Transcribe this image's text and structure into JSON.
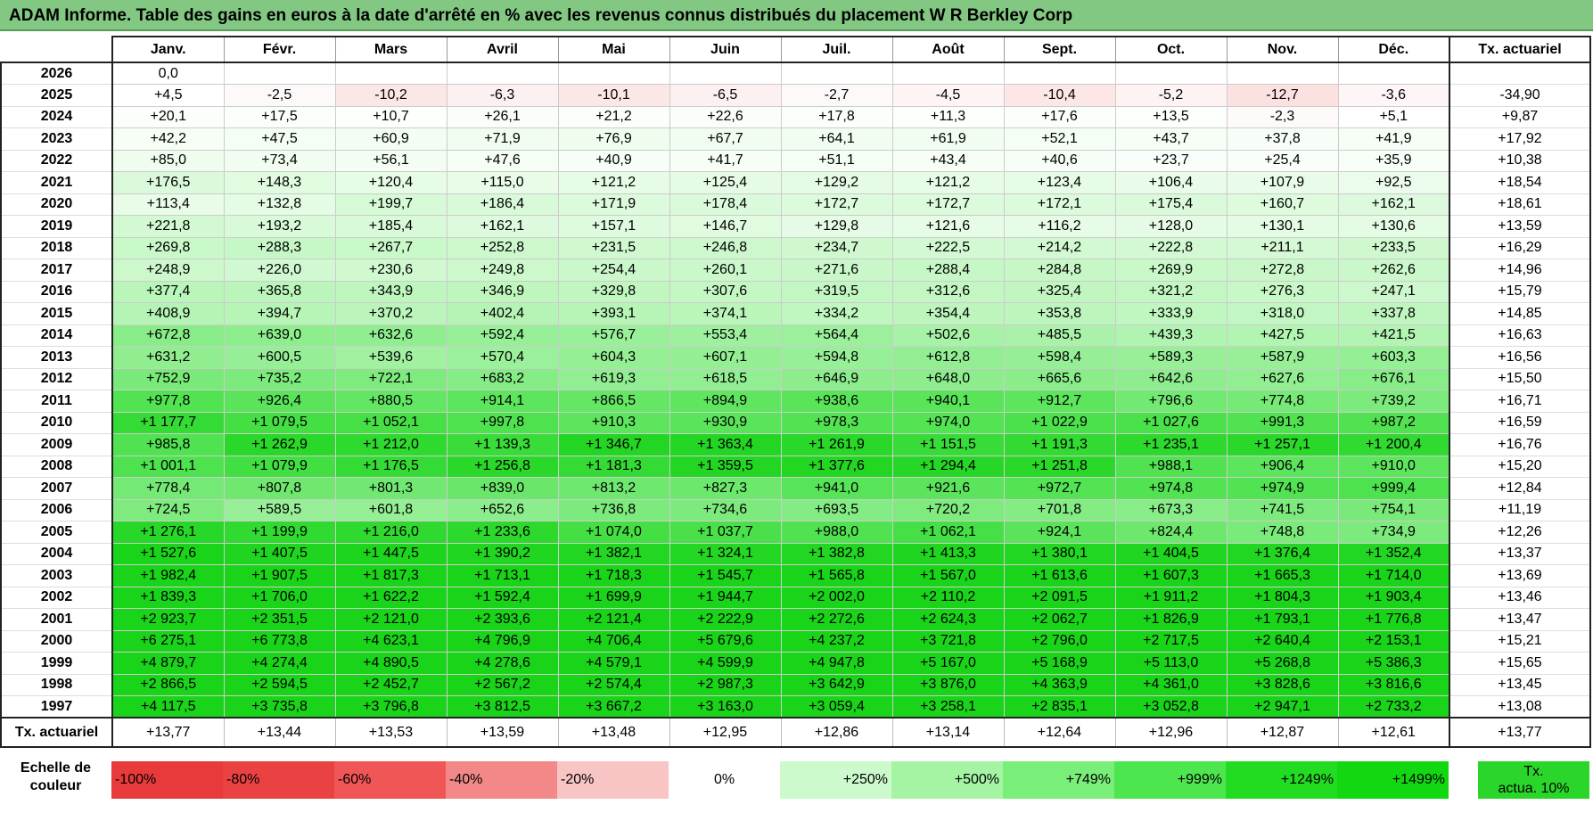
{
  "title": "ADAM Informe. Table des gains en euros à la date d'arrêté en % avec les revenus connus distribués du placement W R Berkley Corp",
  "months": [
    "Janv.",
    "Févr.",
    "Mars",
    "Avril",
    "Mai",
    "Juin",
    "Juil.",
    "Août",
    "Sept.",
    "Oct.",
    "Nov.",
    "Déc."
  ],
  "rate_header": "Tx. actuariel",
  "rows": [
    {
      "year": "2026",
      "vals": [
        "0,0",
        "",
        "",
        "",
        "",
        "",
        "",
        "",
        "",
        "",
        "",
        ""
      ],
      "rate": ""
    },
    {
      "year": "2025",
      "vals": [
        "+4,5",
        "-2,5",
        "-10,2",
        "-6,3",
        "-10,1",
        "-6,5",
        "-2,7",
        "-4,5",
        "-10,4",
        "-5,2",
        "-12,7",
        "-3,6"
      ],
      "rate": "-34,90"
    },
    {
      "year": "2024",
      "vals": [
        "+20,1",
        "+17,5",
        "+10,7",
        "+26,1",
        "+21,2",
        "+22,6",
        "+17,8",
        "+11,3",
        "+17,6",
        "+13,5",
        "-2,3",
        "+5,1"
      ],
      "rate": "+9,87"
    },
    {
      "year": "2023",
      "vals": [
        "+42,2",
        "+47,5",
        "+60,9",
        "+71,9",
        "+76,9",
        "+67,7",
        "+64,1",
        "+61,9",
        "+52,1",
        "+43,7",
        "+37,8",
        "+41,9"
      ],
      "rate": "+17,92"
    },
    {
      "year": "2022",
      "vals": [
        "+85,0",
        "+73,4",
        "+56,1",
        "+47,6",
        "+40,9",
        "+41,7",
        "+51,1",
        "+43,4",
        "+40,6",
        "+23,7",
        "+25,4",
        "+35,9"
      ],
      "rate": "+10,38"
    },
    {
      "year": "2021",
      "vals": [
        "+176,5",
        "+148,3",
        "+120,4",
        "+115,0",
        "+121,2",
        "+125,4",
        "+129,2",
        "+121,2",
        "+123,4",
        "+106,4",
        "+107,9",
        "+92,5"
      ],
      "rate": "+18,54"
    },
    {
      "year": "2020",
      "vals": [
        "+113,4",
        "+132,8",
        "+199,7",
        "+186,4",
        "+171,9",
        "+178,4",
        "+172,7",
        "+172,7",
        "+172,1",
        "+175,4",
        "+160,7",
        "+162,1"
      ],
      "rate": "+18,61"
    },
    {
      "year": "2019",
      "vals": [
        "+221,8",
        "+193,2",
        "+185,4",
        "+162,1",
        "+157,1",
        "+146,7",
        "+129,8",
        "+121,6",
        "+116,2",
        "+128,0",
        "+130,1",
        "+130,6"
      ],
      "rate": "+13,59"
    },
    {
      "year": "2018",
      "vals": [
        "+269,8",
        "+288,3",
        "+267,7",
        "+252,8",
        "+231,5",
        "+246,8",
        "+234,7",
        "+222,5",
        "+214,2",
        "+222,8",
        "+211,1",
        "+233,5"
      ],
      "rate": "+16,29"
    },
    {
      "year": "2017",
      "vals": [
        "+248,9",
        "+226,0",
        "+230,6",
        "+249,8",
        "+254,4",
        "+260,1",
        "+271,6",
        "+288,4",
        "+284,8",
        "+269,9",
        "+272,8",
        "+262,6"
      ],
      "rate": "+14,96"
    },
    {
      "year": "2016",
      "vals": [
        "+377,4",
        "+365,8",
        "+343,9",
        "+346,9",
        "+329,8",
        "+307,6",
        "+319,5",
        "+312,6",
        "+325,4",
        "+321,2",
        "+276,3",
        "+247,1"
      ],
      "rate": "+15,79"
    },
    {
      "year": "2015",
      "vals": [
        "+408,9",
        "+394,7",
        "+370,2",
        "+402,4",
        "+393,1",
        "+374,1",
        "+334,2",
        "+354,4",
        "+353,8",
        "+333,9",
        "+318,0",
        "+337,8"
      ],
      "rate": "+14,85"
    },
    {
      "year": "2014",
      "vals": [
        "+672,8",
        "+639,0",
        "+632,6",
        "+592,4",
        "+576,7",
        "+553,4",
        "+564,4",
        "+502,6",
        "+485,5",
        "+439,3",
        "+427,5",
        "+421,5"
      ],
      "rate": "+16,63"
    },
    {
      "year": "2013",
      "vals": [
        "+631,2",
        "+600,5",
        "+539,6",
        "+570,4",
        "+604,3",
        "+607,1",
        "+594,8",
        "+612,8",
        "+598,4",
        "+589,3",
        "+587,9",
        "+603,3"
      ],
      "rate": "+16,56"
    },
    {
      "year": "2012",
      "vals": [
        "+752,9",
        "+735,2",
        "+722,1",
        "+683,2",
        "+619,3",
        "+618,5",
        "+646,9",
        "+648,0",
        "+665,6",
        "+642,6",
        "+627,6",
        "+676,1"
      ],
      "rate": "+15,50"
    },
    {
      "year": "2011",
      "vals": [
        "+977,8",
        "+926,4",
        "+880,5",
        "+914,1",
        "+866,5",
        "+894,9",
        "+938,6",
        "+940,1",
        "+912,7",
        "+796,6",
        "+774,8",
        "+739,2"
      ],
      "rate": "+16,71"
    },
    {
      "year": "2010",
      "vals": [
        "+1 177,7",
        "+1 079,5",
        "+1 052,1",
        "+997,8",
        "+910,3",
        "+930,9",
        "+978,3",
        "+974,0",
        "+1 022,9",
        "+1 027,6",
        "+991,3",
        "+987,2"
      ],
      "rate": "+16,59"
    },
    {
      "year": "2009",
      "vals": [
        "+985,8",
        "+1 262,9",
        "+1 212,0",
        "+1 139,3",
        "+1 346,7",
        "+1 363,4",
        "+1 261,9",
        "+1 151,5",
        "+1 191,3",
        "+1 235,1",
        "+1 257,1",
        "+1 200,4"
      ],
      "rate": "+16,76"
    },
    {
      "year": "2008",
      "vals": [
        "+1 001,1",
        "+1 079,9",
        "+1 176,5",
        "+1 256,8",
        "+1 181,3",
        "+1 359,5",
        "+1 377,6",
        "+1 294,4",
        "+1 251,8",
        "+988,1",
        "+906,4",
        "+910,0"
      ],
      "rate": "+15,20"
    },
    {
      "year": "2007",
      "vals": [
        "+778,4",
        "+807,8",
        "+801,3",
        "+839,0",
        "+813,2",
        "+827,3",
        "+941,0",
        "+921,6",
        "+972,7",
        "+974,8",
        "+974,9",
        "+999,4"
      ],
      "rate": "+12,84"
    },
    {
      "year": "2006",
      "vals": [
        "+724,5",
        "+589,5",
        "+601,8",
        "+652,6",
        "+736,8",
        "+734,6",
        "+693,5",
        "+720,2",
        "+701,8",
        "+673,3",
        "+741,5",
        "+754,1"
      ],
      "rate": "+11,19"
    },
    {
      "year": "2005",
      "vals": [
        "+1 276,1",
        "+1 199,9",
        "+1 216,0",
        "+1 233,6",
        "+1 074,0",
        "+1 037,7",
        "+988,0",
        "+1 062,1",
        "+924,1",
        "+824,4",
        "+748,8",
        "+734,9"
      ],
      "rate": "+12,26"
    },
    {
      "year": "2004",
      "vals": [
        "+1 527,6",
        "+1 407,5",
        "+1 447,5",
        "+1 390,2",
        "+1 382,1",
        "+1 324,1",
        "+1 382,8",
        "+1 413,3",
        "+1 380,1",
        "+1 404,5",
        "+1 376,4",
        "+1 352,4"
      ],
      "rate": "+13,37"
    },
    {
      "year": "2003",
      "vals": [
        "+1 982,4",
        "+1 907,5",
        "+1 817,3",
        "+1 713,1",
        "+1 718,3",
        "+1 545,7",
        "+1 565,8",
        "+1 567,0",
        "+1 613,6",
        "+1 607,3",
        "+1 665,3",
        "+1 714,0"
      ],
      "rate": "+13,69"
    },
    {
      "year": "2002",
      "vals": [
        "+1 839,3",
        "+1 706,0",
        "+1 622,2",
        "+1 592,4",
        "+1 699,9",
        "+1 944,7",
        "+2 002,0",
        "+2 110,2",
        "+2 091,5",
        "+1 911,2",
        "+1 804,3",
        "+1 903,4"
      ],
      "rate": "+13,46"
    },
    {
      "year": "2001",
      "vals": [
        "+2 923,7",
        "+2 351,5",
        "+2 121,0",
        "+2 393,6",
        "+2 121,4",
        "+2 222,9",
        "+2 272,6",
        "+2 624,3",
        "+2 062,7",
        "+1 826,9",
        "+1 793,1",
        "+1 776,8"
      ],
      "rate": "+13,47"
    },
    {
      "year": "2000",
      "vals": [
        "+6 275,1",
        "+6 773,8",
        "+4 623,1",
        "+4 796,9",
        "+4 706,4",
        "+5 679,6",
        "+4 237,2",
        "+3 721,8",
        "+2 796,0",
        "+2 717,5",
        "+2 640,4",
        "+2 153,1"
      ],
      "rate": "+15,21"
    },
    {
      "year": "1999",
      "vals": [
        "+4 879,7",
        "+4 274,4",
        "+4 890,5",
        "+4 278,6",
        "+4 579,1",
        "+4 599,9",
        "+4 947,8",
        "+5 167,0",
        "+5 168,9",
        "+5 113,0",
        "+5 268,8",
        "+5 386,3"
      ],
      "rate": "+15,65"
    },
    {
      "year": "1998",
      "vals": [
        "+2 866,5",
        "+2 594,5",
        "+2 452,7",
        "+2 567,2",
        "+2 574,4",
        "+2 987,3",
        "+3 642,9",
        "+3 876,0",
        "+4 363,9",
        "+4 361,0",
        "+3 828,6",
        "+3 816,6"
      ],
      "rate": "+13,45"
    },
    {
      "year": "1997",
      "vals": [
        "+4 117,5",
        "+3 735,8",
        "+3 796,8",
        "+3 812,5",
        "+3 667,2",
        "+3 163,0",
        "+3 059,4",
        "+3 258,1",
        "+2 835,1",
        "+3 052,8",
        "+2 947,1",
        "+2 733,2"
      ],
      "rate": "+13,08"
    }
  ],
  "footer": {
    "label": "Tx. actuariel",
    "vals": [
      "+13,77",
      "+13,44",
      "+13,53",
      "+13,59",
      "+13,48",
      "+12,95",
      "+12,86",
      "+13,14",
      "+12,64",
      "+12,96",
      "+12,87",
      "+12,61"
    ],
    "rate": "+13,77"
  },
  "legend": {
    "label_line1": "Echelle de",
    "label_line2": "couleur",
    "swatches": [
      {
        "label": "-100%",
        "color": "#e83a3a",
        "align": "l"
      },
      {
        "label": "-80%",
        "color": "#ea4242",
        "align": "l"
      },
      {
        "label": "-60%",
        "color": "#f05656",
        "align": "l"
      },
      {
        "label": "-40%",
        "color": "#f38888",
        "align": "l"
      },
      {
        "label": "-20%",
        "color": "#f8c4c4",
        "align": "l"
      },
      {
        "label": "0%",
        "color": "#ffffff",
        "align": "c"
      },
      {
        "label": "+250%",
        "color": "#ccfacc",
        "align": "r"
      },
      {
        "label": "+500%",
        "color": "#a4f4a4",
        "align": "r"
      },
      {
        "label": "+749%",
        "color": "#79ee79",
        "align": "r"
      },
      {
        "label": "+999%",
        "color": "#4ee64e",
        "align": "r"
      },
      {
        "label": "+1249%",
        "color": "#22dc22",
        "align": "r"
      },
      {
        "label": "+1499%",
        "color": "#12d812",
        "align": "r"
      }
    ],
    "actual_line1": "Tx.",
    "actual_line2": "actua. 10%"
  }
}
